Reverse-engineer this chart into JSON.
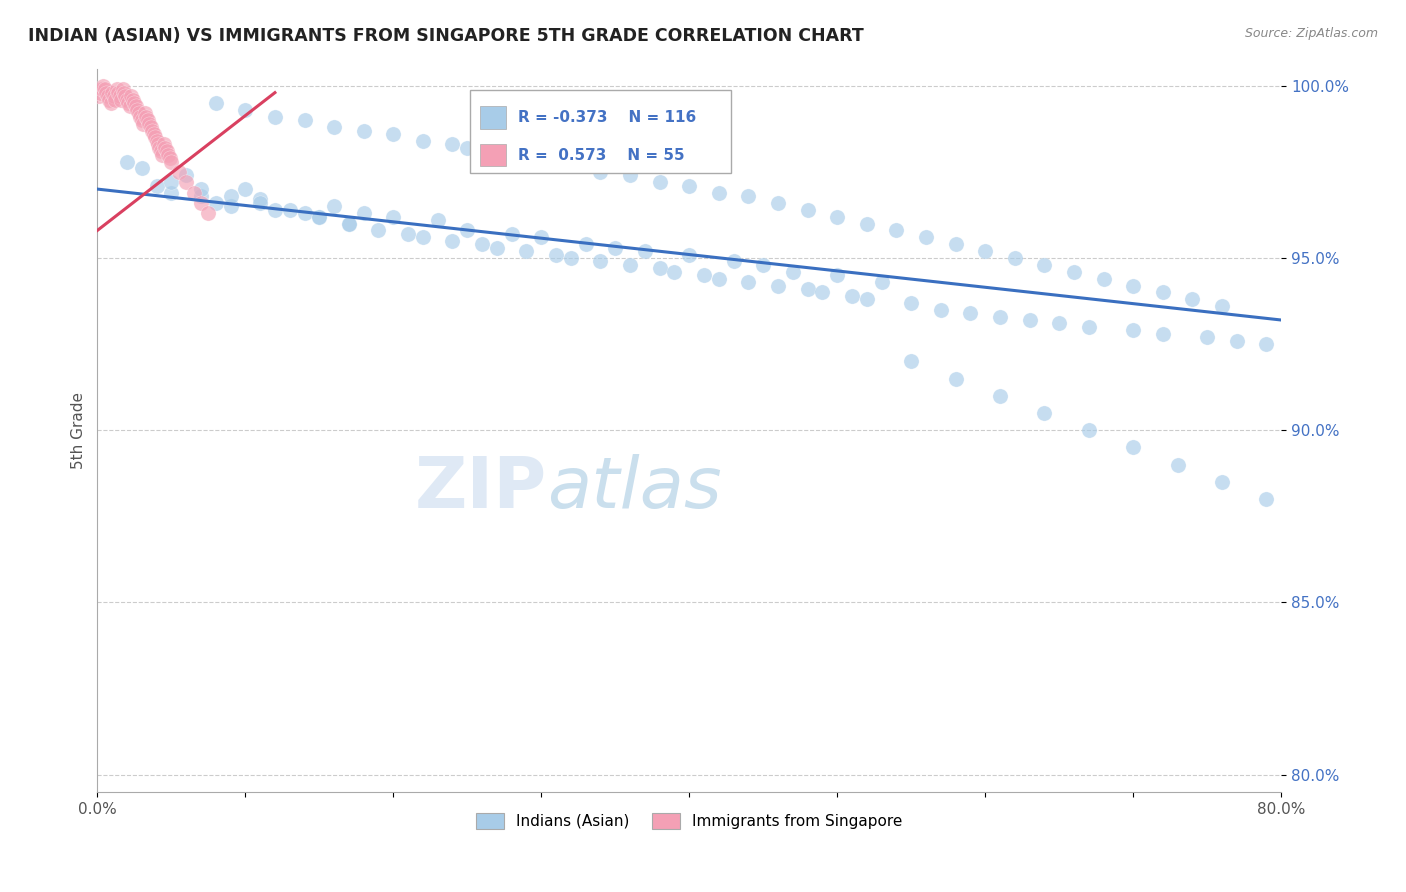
{
  "title": "INDIAN (ASIAN) VS IMMIGRANTS FROM SINGAPORE 5TH GRADE CORRELATION CHART",
  "source_text": "Source: ZipAtlas.com",
  "ylabel": "5th Grade",
  "xlim": [
    0.0,
    0.8
  ],
  "ylim": [
    0.795,
    1.005
  ],
  "yticks": [
    0.8,
    0.85,
    0.9,
    0.95,
    1.0
  ],
  "yticklabels": [
    "80.0%",
    "85.0%",
    "90.0%",
    "95.0%",
    "100.0%"
  ],
  "xticks": [
    0.0,
    0.1,
    0.2,
    0.3,
    0.4,
    0.5,
    0.6,
    0.7,
    0.8
  ],
  "xticklabels": [
    "0.0%",
    "",
    "",
    "",
    "",
    "",
    "",
    "",
    "80.0%"
  ],
  "blue_color": "#A8CCE8",
  "pink_color": "#F4A0B5",
  "trend_blue_color": "#3A6FC0",
  "trend_pink_color": "#D94060",
  "ytick_color": "#4472C4",
  "legend_R_blue": "-0.373",
  "legend_N_blue": "116",
  "legend_R_pink": "0.573",
  "legend_N_pink": "55",
  "watermark_zip": "ZIP",
  "watermark_atlas": "atlas",
  "blue_trend_x": [
    0.0,
    0.8
  ],
  "blue_trend_y": [
    0.97,
    0.932
  ],
  "pink_trend_x": [
    0.0,
    0.12
  ],
  "pink_trend_y": [
    0.958,
    0.998
  ],
  "blue_x": [
    0.02,
    0.03,
    0.04,
    0.05,
    0.06,
    0.07,
    0.08,
    0.09,
    0.1,
    0.11,
    0.12,
    0.14,
    0.15,
    0.16,
    0.17,
    0.18,
    0.19,
    0.2,
    0.21,
    0.22,
    0.23,
    0.24,
    0.25,
    0.26,
    0.27,
    0.28,
    0.29,
    0.3,
    0.31,
    0.32,
    0.33,
    0.34,
    0.35,
    0.36,
    0.37,
    0.38,
    0.39,
    0.4,
    0.41,
    0.42,
    0.43,
    0.44,
    0.45,
    0.46,
    0.47,
    0.48,
    0.49,
    0.5,
    0.51,
    0.52,
    0.53,
    0.55,
    0.57,
    0.59,
    0.61,
    0.63,
    0.65,
    0.67,
    0.7,
    0.72,
    0.75,
    0.77,
    0.79,
    0.08,
    0.1,
    0.12,
    0.14,
    0.16,
    0.18,
    0.2,
    0.22,
    0.24,
    0.25,
    0.27,
    0.29,
    0.3,
    0.32,
    0.34,
    0.36,
    0.38,
    0.4,
    0.42,
    0.44,
    0.46,
    0.48,
    0.5,
    0.52,
    0.54,
    0.56,
    0.58,
    0.6,
    0.62,
    0.64,
    0.66,
    0.68,
    0.7,
    0.72,
    0.74,
    0.76,
    0.05,
    0.07,
    0.09,
    0.11,
    0.13,
    0.15,
    0.17,
    0.55,
    0.58,
    0.61,
    0.64,
    0.67,
    0.7,
    0.73,
    0.76,
    0.79
  ],
  "blue_y": [
    0.978,
    0.976,
    0.971,
    0.969,
    0.974,
    0.968,
    0.966,
    0.965,
    0.97,
    0.967,
    0.964,
    0.963,
    0.962,
    0.965,
    0.96,
    0.963,
    0.958,
    0.962,
    0.957,
    0.956,
    0.961,
    0.955,
    0.958,
    0.954,
    0.953,
    0.957,
    0.952,
    0.956,
    0.951,
    0.95,
    0.954,
    0.949,
    0.953,
    0.948,
    0.952,
    0.947,
    0.946,
    0.951,
    0.945,
    0.944,
    0.949,
    0.943,
    0.948,
    0.942,
    0.946,
    0.941,
    0.94,
    0.945,
    0.939,
    0.938,
    0.943,
    0.937,
    0.935,
    0.934,
    0.933,
    0.932,
    0.931,
    0.93,
    0.929,
    0.928,
    0.927,
    0.926,
    0.925,
    0.995,
    0.993,
    0.991,
    0.99,
    0.988,
    0.987,
    0.986,
    0.984,
    0.983,
    0.982,
    0.981,
    0.98,
    0.978,
    0.977,
    0.975,
    0.974,
    0.972,
    0.971,
    0.969,
    0.968,
    0.966,
    0.964,
    0.962,
    0.96,
    0.958,
    0.956,
    0.954,
    0.952,
    0.95,
    0.948,
    0.946,
    0.944,
    0.942,
    0.94,
    0.938,
    0.936,
    0.972,
    0.97,
    0.968,
    0.966,
    0.964,
    0.962,
    0.96,
    0.92,
    0.915,
    0.91,
    0.905,
    0.9,
    0.895,
    0.89,
    0.885,
    0.88
  ],
  "pink_x": [
    0.001,
    0.002,
    0.003,
    0.004,
    0.005,
    0.006,
    0.007,
    0.008,
    0.009,
    0.01,
    0.011,
    0.012,
    0.013,
    0.014,
    0.015,
    0.016,
    0.017,
    0.018,
    0.019,
    0.02,
    0.021,
    0.022,
    0.023,
    0.024,
    0.025,
    0.026,
    0.027,
    0.028,
    0.029,
    0.03,
    0.031,
    0.032,
    0.033,
    0.034,
    0.035,
    0.036,
    0.037,
    0.038,
    0.039,
    0.04,
    0.041,
    0.042,
    0.043,
    0.044,
    0.045,
    0.046,
    0.047,
    0.048,
    0.049,
    0.05,
    0.055,
    0.06,
    0.065,
    0.07,
    0.075
  ],
  "pink_y": [
    0.997,
    0.998,
    0.999,
    1.0,
    0.999,
    0.998,
    0.997,
    0.996,
    0.995,
    0.998,
    0.997,
    0.996,
    0.999,
    0.998,
    0.997,
    0.996,
    0.999,
    0.998,
    0.997,
    0.996,
    0.995,
    0.994,
    0.997,
    0.996,
    0.995,
    0.994,
    0.993,
    0.992,
    0.991,
    0.99,
    0.989,
    0.992,
    0.991,
    0.99,
    0.989,
    0.988,
    0.987,
    0.986,
    0.985,
    0.984,
    0.983,
    0.982,
    0.981,
    0.98,
    0.983,
    0.982,
    0.981,
    0.98,
    0.979,
    0.978,
    0.975,
    0.972,
    0.969,
    0.966,
    0.963
  ]
}
